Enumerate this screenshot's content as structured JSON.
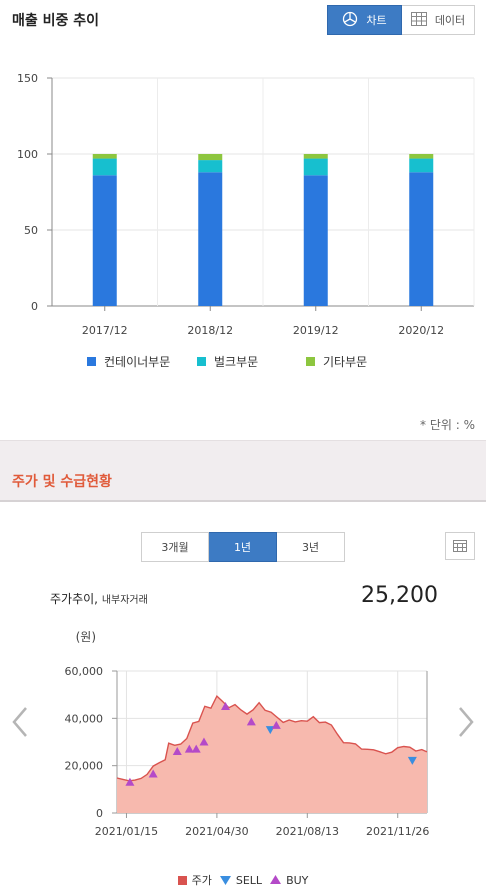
{
  "sales_section": {
    "title": "매출 비중 추이",
    "toggle": {
      "chart_label": "차트",
      "data_label": "데이터",
      "chart_icon": "pie-icon",
      "data_icon": "table-icon"
    },
    "unit_note": "* 단위 : %"
  },
  "price_section": {
    "title": "주가 및 수급현황",
    "periods": [
      "3개월",
      "1년",
      "3년"
    ],
    "active_period": "1년",
    "chart_title": "주가추이,",
    "chart_subtitle": "내부자거래",
    "current_price": "25,200",
    "y_unit": "(원)",
    "calendar_icon": "calendar-icon"
  },
  "chart_data": [
    {
      "type": "bar",
      "stacked": true,
      "categories": [
        "2017/12",
        "2018/12",
        "2019/12",
        "2020/12"
      ],
      "series": [
        {
          "name": "컨테이너부문",
          "color": "#2a78de",
          "values": [
            86,
            88,
            86,
            88
          ]
        },
        {
          "name": "벌크부문",
          "color": "#17bfcf",
          "values": [
            11,
            8,
            11,
            9
          ]
        },
        {
          "name": "기타부문",
          "color": "#8dc63f",
          "values": [
            3,
            4,
            3,
            3
          ]
        }
      ],
      "ylim": [
        0,
        150
      ],
      "yticks": [
        0,
        50,
        100,
        150
      ],
      "grid": true,
      "legend": "bottom"
    },
    {
      "type": "area",
      "x_start": "2021/01/04",
      "x_end": "2021/12/30",
      "xticks": [
        "2021/01/15",
        "2021/04/30",
        "2021/08/13",
        "2021/11/26"
      ],
      "ylim": [
        0,
        60000
      ],
      "yticks": [
        0,
        20000,
        40000,
        60000
      ],
      "ytick_labels": [
        "0",
        "20,000",
        "40,000",
        "60,000"
      ],
      "grid": true,
      "legend": "bottom",
      "price": {
        "name": "주가",
        "color": "#d9534f",
        "fill": "#f7b9ae",
        "points": [
          [
            "2021/01/04",
            14800
          ],
          [
            "2021/01/11",
            14200
          ],
          [
            "2021/01/18",
            13600
          ],
          [
            "2021/01/25",
            13900
          ],
          [
            "2021/02/01",
            14600
          ],
          [
            "2021/02/08",
            16300
          ],
          [
            "2021/02/15",
            19800
          ],
          [
            "2021/02/22",
            21200
          ],
          [
            "2021/03/01",
            22500
          ],
          [
            "2021/03/05",
            29500
          ],
          [
            "2021/03/12",
            28600
          ],
          [
            "2021/03/19",
            29100
          ],
          [
            "2021/03/26",
            31500
          ],
          [
            "2021/04/02",
            38000
          ],
          [
            "2021/04/09",
            38700
          ],
          [
            "2021/04/16",
            45100
          ],
          [
            "2021/04/23",
            44300
          ],
          [
            "2021/04/30",
            49400
          ],
          [
            "2021/05/07",
            47000
          ],
          [
            "2021/05/14",
            44500
          ],
          [
            "2021/05/21",
            45800
          ],
          [
            "2021/05/28",
            43500
          ],
          [
            "2021/06/04",
            41800
          ],
          [
            "2021/06/11",
            43600
          ],
          [
            "2021/06/18",
            46600
          ],
          [
            "2021/06/25",
            43400
          ],
          [
            "2021/07/02",
            42600
          ],
          [
            "2021/07/09",
            40400
          ],
          [
            "2021/07/16",
            38300
          ],
          [
            "2021/07/23",
            39300
          ],
          [
            "2021/07/30",
            38500
          ],
          [
            "2021/08/06",
            39000
          ],
          [
            "2021/08/13",
            38800
          ],
          [
            "2021/08/20",
            40700
          ],
          [
            "2021/08/27",
            38200
          ],
          [
            "2021/09/03",
            38400
          ],
          [
            "2021/09/10",
            37200
          ],
          [
            "2021/09/17",
            33300
          ],
          [
            "2021/09/24",
            29700
          ],
          [
            "2021/10/01",
            29600
          ],
          [
            "2021/10/08",
            29200
          ],
          [
            "2021/10/15",
            27000
          ],
          [
            "2021/10/22",
            26900
          ],
          [
            "2021/10/29",
            26700
          ],
          [
            "2021/11/05",
            25900
          ],
          [
            "2021/11/12",
            25000
          ],
          [
            "2021/11/19",
            25700
          ],
          [
            "2021/11/26",
            27600
          ],
          [
            "2021/12/03",
            28100
          ],
          [
            "2021/12/10",
            27800
          ],
          [
            "2021/12/17",
            26200
          ],
          [
            "2021/12/24",
            26800
          ],
          [
            "2021/12/30",
            25800
          ]
        ]
      },
      "sell": {
        "name": "SELL",
        "color": "#3a8ee0",
        "points": [
          [
            "2021/07/01",
            35000
          ],
          [
            "2021/12/13",
            22000
          ]
        ]
      },
      "buy": {
        "name": "BUY",
        "color": "#b44ac8",
        "points": [
          [
            "2021/01/19",
            13000
          ],
          [
            "2021/02/15",
            16500
          ],
          [
            "2021/03/15",
            26000
          ],
          [
            "2021/03/29",
            27000
          ],
          [
            "2021/04/06",
            27000
          ],
          [
            "2021/04/15",
            30000
          ],
          [
            "2021/05/10",
            45000
          ],
          [
            "2021/06/09",
            38500
          ],
          [
            "2021/07/08",
            37000
          ]
        ]
      }
    }
  ]
}
